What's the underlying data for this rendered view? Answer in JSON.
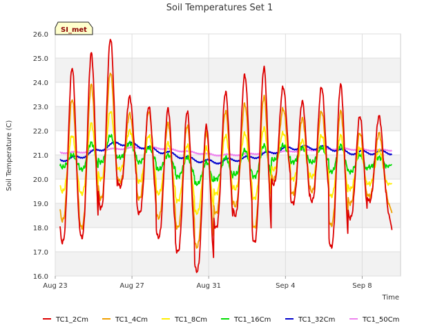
{
  "chart_data": {
    "type": "line",
    "title": "Soil Temperatures Set 1",
    "xlabel": "Time",
    "ylabel": "Soil Temperature (C)",
    "badge": "SI_met",
    "x_start": "Aug 23",
    "x_end": "Sep 10",
    "ylim": [
      16.0,
      26.0
    ],
    "y_ticks": [
      "16.0",
      "17.0",
      "18.0",
      "19.0",
      "20.0",
      "21.0",
      "22.0",
      "23.0",
      "24.0",
      "25.0",
      "26.0"
    ],
    "x_ticks": [
      {
        "label": "Aug 23",
        "day": 0
      },
      {
        "label": "Aug 27",
        "day": 4
      },
      {
        "label": "Aug 31",
        "day": 8
      },
      {
        "label": "Sep 4",
        "day": 12
      },
      {
        "label": "Sep 8",
        "day": 16
      }
    ],
    "grid": true,
    "legend_position": "bottom",
    "series": [
      {
        "name": "TC1_2Cm",
        "color": "#dd0000",
        "daily_max": [
          24.6,
          25.2,
          25.8,
          23.4,
          23.0,
          22.9,
          22.8,
          22.2,
          23.6,
          24.3,
          24.6,
          23.8,
          23.2,
          23.8,
          23.9,
          22.6,
          22.6
        ],
        "daily_min": [
          17.4,
          17.6,
          18.8,
          19.7,
          18.6,
          17.6,
          17.0,
          16.2,
          18.0,
          18.5,
          17.4,
          19.8,
          19.0,
          19.1,
          17.2,
          18.4,
          19.1
        ],
        "end_value": 17.9
      },
      {
        "name": "TC1_4Cm",
        "color": "#f0a000",
        "daily_max": [
          23.3,
          23.9,
          24.4,
          22.7,
          22.8,
          22.3,
          22.2,
          21.9,
          22.8,
          23.1,
          23.4,
          22.9,
          22.5,
          22.8,
          22.8,
          21.9,
          21.9
        ],
        "daily_min": [
          18.3,
          18.0,
          19.2,
          19.9,
          19.2,
          18.4,
          18.0,
          17.2,
          18.6,
          18.9,
          18.0,
          20.0,
          19.4,
          19.5,
          18.1,
          19.0,
          19.3
        ],
        "end_value": 18.6
      },
      {
        "name": "TC1_8Cm",
        "color": "#ffee00",
        "daily_max": [
          21.8,
          22.3,
          22.8,
          22.0,
          21.8,
          21.5,
          21.4,
          21.3,
          21.8,
          21.9,
          22.1,
          21.9,
          21.6,
          21.8,
          21.8,
          21.3,
          21.2
        ],
        "daily_min": [
          19.5,
          19.4,
          20.0,
          20.4,
          19.9,
          19.4,
          19.1,
          18.6,
          19.4,
          19.6,
          19.2,
          20.4,
          20.0,
          20.1,
          19.3,
          19.6,
          19.8
        ],
        "end_value": 19.8
      },
      {
        "name": "TC1_16Cm",
        "color": "#00dd00",
        "daily_max": [
          21.0,
          21.5,
          21.8,
          21.5,
          21.3,
          21.0,
          20.9,
          20.7,
          20.9,
          21.2,
          21.4,
          21.4,
          21.3,
          21.3,
          21.4,
          21.0,
          20.9
        ],
        "daily_min": [
          20.5,
          20.4,
          20.7,
          20.9,
          20.7,
          20.4,
          20.1,
          19.8,
          20.0,
          20.2,
          20.1,
          20.8,
          20.7,
          20.7,
          20.3,
          20.3,
          20.5
        ],
        "end_value": 20.6
      },
      {
        "name": "TC1_32Cm",
        "color": "#0000cc",
        "daily_mean": [
          20.8,
          20.9,
          21.2,
          21.5,
          21.4,
          21.2,
          21.0,
          20.8,
          20.7,
          20.8,
          20.9,
          21.1,
          21.3,
          21.3,
          21.3,
          21.1,
          21.1,
          21.1
        ],
        "amplitude": 0.08
      },
      {
        "name": "TC1_50Cm",
        "color": "#ee82ee",
        "daily_mean": [
          21.1,
          21.1,
          21.2,
          21.25,
          21.3,
          21.3,
          21.2,
          21.1,
          21.0,
          21.0,
          21.05,
          21.1,
          21.15,
          21.2,
          21.25,
          21.25,
          21.2,
          21.2
        ],
        "amplitude": 0.03
      }
    ]
  }
}
